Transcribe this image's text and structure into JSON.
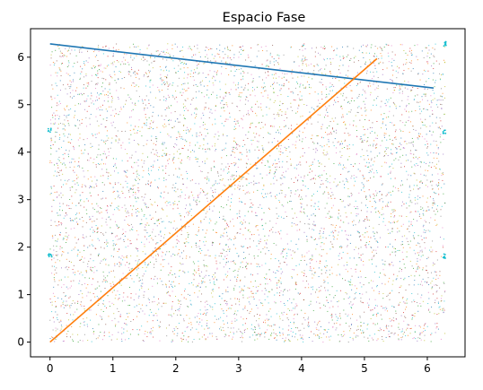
{
  "chart_data": {
    "type": "scatter",
    "title": "Espacio Fase",
    "xlabel": "",
    "ylabel": "",
    "xlim": [
      -0.31,
      6.6
    ],
    "ylim": [
      -0.31,
      6.6
    ],
    "xticks": [
      0,
      1,
      2,
      3,
      4,
      5,
      6
    ],
    "yticks": [
      0,
      1,
      2,
      3,
      4,
      5,
      6
    ],
    "xtick_labels": [
      "0",
      "1",
      "2",
      "3",
      "4",
      "5",
      "6"
    ],
    "ytick_labels": [
      "0",
      "1",
      "2",
      "3",
      "4",
      "5",
      "6"
    ],
    "grid": false,
    "legend": "none",
    "background": {
      "description_only": false,
      "kind": "dense-scatter",
      "x_range": [
        0,
        6.283
      ],
      "y_range": [
        0,
        6.283
      ],
      "approx_points": 6000,
      "colors": [
        "#1f77b4",
        "#ff7f0e",
        "#2ca02c",
        "#d62728",
        "#9467bd",
        "#8c564b",
        "#e377c2",
        "#7f7f7f",
        "#bcbd22",
        "#17becf"
      ]
    },
    "lines": [
      {
        "color": "#1f77b4",
        "x": [
          0,
          6.1
        ],
        "y": [
          6.28,
          5.35
        ]
      },
      {
        "color": "#ff7f0e",
        "x": [
          0,
          5.2
        ],
        "y": [
          0,
          5.97
        ]
      }
    ],
    "clusters": [
      {
        "color": "#17becf",
        "x": 0.0,
        "y": 1.83
      },
      {
        "color": "#17becf",
        "x": 0.0,
        "y": 4.48
      },
      {
        "color": "#17becf",
        "x": 6.27,
        "y": 1.8
      },
      {
        "color": "#17becf",
        "x": 6.27,
        "y": 4.45
      },
      {
        "color": "#17becf",
        "x": 6.28,
        "y": 6.28
      }
    ]
  }
}
